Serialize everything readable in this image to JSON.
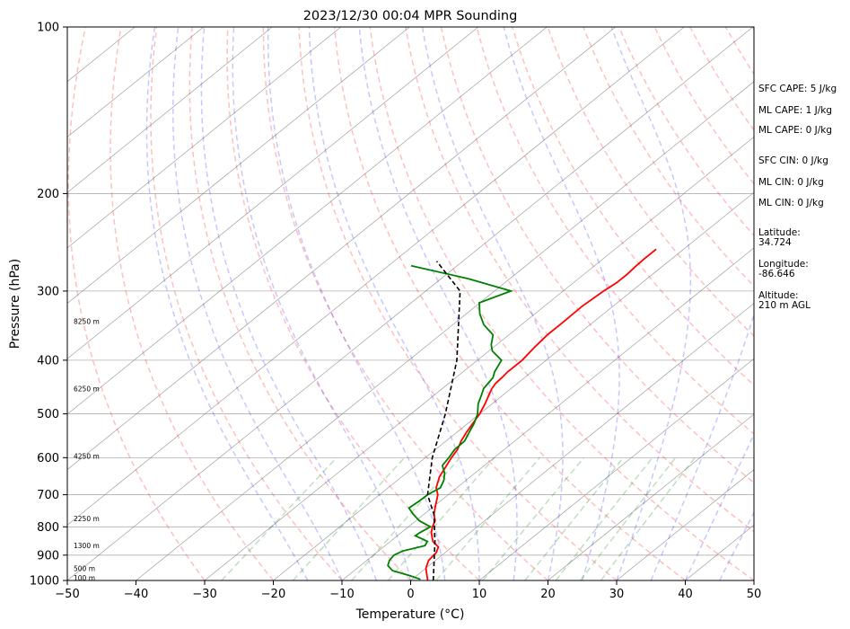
{
  "chart_data": {
    "type": "line",
    "title": "2023/12/30 00:04 MPR Sounding",
    "xlabel": "Temperature (°C)",
    "ylabel": "Pressure (hPa)",
    "xlim": [
      -50,
      50
    ],
    "ylim": [
      1000,
      100
    ],
    "y_scale": "log",
    "grid": true,
    "x_ticks": [
      -50,
      -40,
      -30,
      -20,
      -10,
      0,
      10,
      20,
      30,
      40,
      50
    ],
    "x_tick_labels": [
      "−50",
      "−40",
      "−30",
      "−20",
      "−10",
      "0",
      "10",
      "20",
      "30",
      "40",
      "50"
    ],
    "y_ticks": [
      1000,
      900,
      800,
      700,
      600,
      500,
      400,
      300,
      200,
      100
    ],
    "y_tick_labels": [
      "1000",
      "900",
      "800",
      "700",
      "600",
      "500",
      "400",
      "300",
      "200",
      "100"
    ],
    "isotherms": [
      -160,
      -150,
      -140,
      -130,
      -120,
      -110,
      -100,
      -90,
      -80,
      -70,
      -60,
      -50,
      -40,
      -30,
      -20,
      -10,
      0,
      10,
      20,
      30,
      40,
      50
    ],
    "dry_adiabats_theta_c": [
      -30,
      -20,
      -10,
      0,
      10,
      20,
      30,
      40,
      50,
      60,
      70,
      80,
      90,
      100,
      110,
      120,
      130,
      140,
      150,
      160,
      170,
      180,
      190,
      200
    ],
    "moist_adiabats_start_c": [
      -15,
      -10,
      -5,
      0,
      5,
      10,
      15,
      20,
      25,
      30,
      35,
      40,
      45
    ],
    "mixing_ratio_lines_gkg": [
      0.4,
      1,
      2,
      3,
      5,
      8,
      12,
      16,
      20,
      24
    ],
    "colors": {
      "temperature": "#ff0000",
      "dewpoint": "#008000",
      "parcel": "#000000",
      "isotherm": "#808080",
      "dry_adiabat": "#ff0000",
      "moist_adiabat": "#0000ff",
      "mixing_ratio": "#008000"
    },
    "series": [
      {
        "key": "temperature",
        "points": [
          [
            2.4,
            998
          ],
          [
            1.5,
            980
          ],
          [
            0,
            950
          ],
          [
            -1,
            920
          ],
          [
            -1.3,
            890
          ],
          [
            -2,
            870
          ],
          [
            -3.8,
            850
          ],
          [
            -5.6,
            820
          ],
          [
            -6.5,
            800
          ],
          [
            -7.2,
            780
          ],
          [
            -8.5,
            760
          ],
          [
            -9.5,
            740
          ],
          [
            -10.5,
            720
          ],
          [
            -11.5,
            700
          ],
          [
            -13,
            680
          ],
          [
            -14.5,
            650
          ],
          [
            -15.5,
            620
          ],
          [
            -16.2,
            600
          ],
          [
            -16.8,
            580
          ],
          [
            -17.8,
            560
          ],
          [
            -18.6,
            540
          ],
          [
            -19.3,
            520
          ],
          [
            -20,
            500
          ],
          [
            -21,
            480
          ],
          [
            -22.2,
            460
          ],
          [
            -22.8,
            450
          ],
          [
            -23.2,
            440
          ],
          [
            -23.3,
            430
          ],
          [
            -23.5,
            420
          ],
          [
            -23.5,
            400
          ],
          [
            -24,
            380
          ],
          [
            -24.4,
            360
          ],
          [
            -24.4,
            340
          ],
          [
            -24.5,
            320
          ],
          [
            -24.1,
            300
          ],
          [
            -23.7,
            290
          ],
          [
            -23.7,
            280
          ],
          [
            -23.9,
            270
          ],
          [
            -24,
            262
          ],
          [
            -24,
            252
          ]
        ]
      },
      {
        "key": "dewpoint",
        "points": [
          [
            1.2,
            995
          ],
          [
            -1,
            980
          ],
          [
            -4.4,
            960
          ],
          [
            -6,
            940
          ],
          [
            -6.7,
            920
          ],
          [
            -7,
            900
          ],
          [
            -6.5,
            885
          ],
          [
            -4.2,
            865
          ],
          [
            -4.6,
            850
          ],
          [
            -7.4,
            830
          ],
          [
            -7.3,
            820
          ],
          [
            -6.8,
            800
          ],
          [
            -9.5,
            780
          ],
          [
            -11.5,
            760
          ],
          [
            -13.3,
            740
          ],
          [
            -13.1,
            720
          ],
          [
            -13,
            700
          ],
          [
            -12.4,
            680
          ],
          [
            -13.2,
            660
          ],
          [
            -14.4,
            640
          ],
          [
            -16.1,
            620
          ],
          [
            -16.6,
            600
          ],
          [
            -17.2,
            580
          ],
          [
            -17.3,
            560
          ],
          [
            -18.2,
            540
          ],
          [
            -19.1,
            520
          ],
          [
            -20.3,
            500
          ],
          [
            -22,
            480
          ],
          [
            -23.3,
            460
          ],
          [
            -24,
            450
          ],
          [
            -24.3,
            440
          ],
          [
            -24.6,
            430
          ],
          [
            -25.4,
            420
          ],
          [
            -26.5,
            400
          ],
          [
            -29.5,
            385
          ],
          [
            -30.8,
            375
          ],
          [
            -32.3,
            360
          ],
          [
            -35.5,
            345
          ],
          [
            -38,
            330
          ],
          [
            -40.1,
            315
          ],
          [
            -37.6,
            300
          ],
          [
            -46,
            285
          ],
          [
            -56.7,
            270
          ]
        ]
      },
      {
        "key": "parcel",
        "points": [
          [
            3.3,
            1000
          ],
          [
            -3.5,
            850
          ],
          [
            -8.5,
            760
          ],
          [
            -13,
            700
          ],
          [
            -19,
            600
          ],
          [
            -25,
            500
          ],
          [
            -33,
            400
          ],
          [
            -45,
            300
          ],
          [
            -53.8,
            265
          ]
        ]
      }
    ],
    "height_labels": [
      {
        "text": "100 m",
        "pressure": 988
      },
      {
        "text": "500 m",
        "pressure": 950
      },
      {
        "text": "1300 m",
        "pressure": 865
      },
      {
        "text": "2250 m",
        "pressure": 772
      },
      {
        "text": "4250 m",
        "pressure": 596
      },
      {
        "text": "6250 m",
        "pressure": 450
      },
      {
        "text": "8250 m",
        "pressure": 340
      }
    ]
  },
  "side_info": {
    "sfc_cape": "SFC CAPE: 5 J/kg",
    "ml_cape_1": "ML CAPE: 1 J/kg",
    "ml_cape_2": "ML CAPE: 0 J/kg",
    "sfc_cin": "SFC CIN: 0 J/kg",
    "ml_cin_1": "ML CIN: 0 J/kg",
    "ml_cin_2": "ML CIN: 0 J/kg",
    "latitude_label": "Latitude:",
    "latitude_value": "34.724",
    "longitude_label": "Longitude:",
    "longitude_value": "-86.646",
    "altitude_label": "Altitude:",
    "altitude_value": "210 m AGL"
  }
}
